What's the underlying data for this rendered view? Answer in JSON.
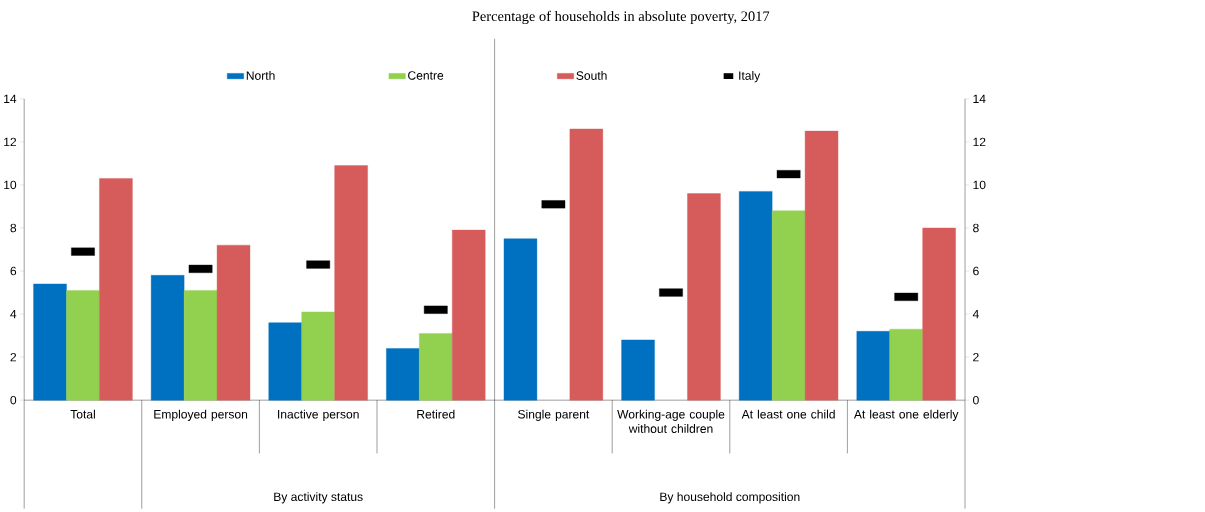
{
  "chart_data": {
    "type": "bar",
    "title": "Percentage of households in absolute poverty, 2017",
    "categories": [
      "Total",
      "Employed person",
      "Inactive person",
      "Retired",
      "Single parent",
      "Working-age couple without children",
      "At least one child",
      "At least one elderly"
    ],
    "series": [
      {
        "name": "North",
        "color": "#0070c0",
        "values": [
          5.4,
          5.8,
          3.6,
          2.4,
          7.5,
          2.8,
          9.7,
          3.2
        ]
      },
      {
        "name": "Centre",
        "color": "#92d050",
        "values": [
          5.1,
          5.1,
          4.1,
          3.1,
          null,
          null,
          8.8,
          3.3
        ]
      },
      {
        "name": "South",
        "color": "#d65c5c",
        "values": [
          10.3,
          7.2,
          10.9,
          7.9,
          12.6,
          9.6,
          12.5,
          8.0
        ]
      },
      {
        "name": "Italy",
        "type": "scatter",
        "color": "#000000",
        "values": [
          6.9,
          6.1,
          6.3,
          4.2,
          9.1,
          5.0,
          10.5,
          4.8
        ]
      }
    ],
    "ylim": [
      0,
      14
    ],
    "yticks": [
      0,
      2,
      4,
      6,
      8,
      10,
      12,
      14
    ],
    "y2lim": [
      0,
      14
    ],
    "y2ticks": [
      0,
      2,
      4,
      6,
      8,
      10,
      12,
      14
    ],
    "annotations": [
      "By activity status",
      "By household composition"
    ],
    "legend": "top"
  }
}
